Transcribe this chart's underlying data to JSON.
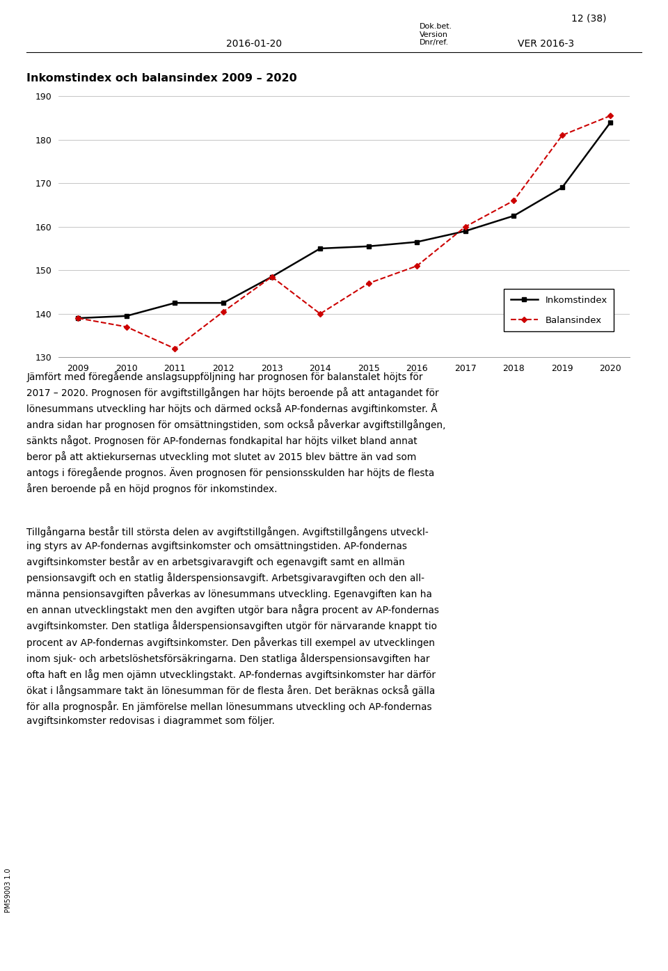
{
  "title": "Inkomstindex och balansindex 2009 – 2020",
  "years": [
    2009,
    2010,
    2011,
    2012,
    2013,
    2014,
    2015,
    2016,
    2017,
    2018,
    2019,
    2020
  ],
  "inkomstindex": [
    139.0,
    139.5,
    142.5,
    142.5,
    148.5,
    155.0,
    155.5,
    156.5,
    159.0,
    162.5,
    169.0,
    184.0
  ],
  "balansindex": [
    139.0,
    137.0,
    132.0,
    140.5,
    148.5,
    140.0,
    147.0,
    151.0,
    160.0,
    166.0,
    181.0,
    185.5
  ],
  "ylim": [
    130,
    192
  ],
  "yticks": [
    130,
    140,
    150,
    160,
    170,
    180,
    190
  ],
  "inkomstindex_color": "#000000",
  "balansindex_color": "#cc0000",
  "legend_inkomstindex": "Inkomstindex",
  "legend_balansindex": "Balansindex",
  "header_date": "2016-01-20",
  "header_doc": "Dok.bet.",
  "header_version": "Version",
  "header_dnr": "Dnr/ref.",
  "header_ver": "VER 2016-3",
  "header_page": "12 (38)",
  "sidebar_text": "PM59003 1.0",
  "para1_lines": [
    "Jämfört med föregående anslagsuppföljning har prognosen för balanstalet höjts för",
    "2017 – 2020. Prognosen för avgiftstillgången har höjts beroende på att antagandet för",
    "lönesummans utveckling har höjts och därmed också AP-fondernas avgiftinkomster. Å",
    "andra sidan har prognosen för omsättningstiden, som också påverkar avgiftstillgången,",
    "sänkts något. Prognosen för AP-fondernas fondkapital har höjts vilket bland annat",
    "beror på att aktiekursernas utveckling mot slutet av 2015 blev bättre än vad som",
    "antogs i föregående prognos. Även prognosen för pensionsskulden har höjts de flesta",
    "åren beroende på en höjd prognos för inkomstindex."
  ],
  "para2_lines": [
    "Tillgångarna består till största delen av avgiftstillgången. Avgiftstillgångens utveckl-",
    "ing styrs av AP-fondernas avgiftsinkomster och omsättningstiden. AP-fondernas",
    "avgiftsinkomster består av en arbetsgivaravgift och egenavgift samt en allmän",
    "pensionsavgift och en statlig ålderspensionsavgift. Arbetsgivaravgiften och den all-",
    "männa pensionsavgiften påverkas av lönesummans utveckling. Egenavgiften kan ha",
    "en annan utvecklingstakt men den avgiften utgör bara några procent av AP-fondernas",
    "avgiftsinkomster. Den statliga ålderspensionsavgiften utgör för närvarande knappt tio",
    "procent av AP-fondernas avgiftsinkomster. Den påverkas till exempel av utvecklingen",
    "inom sjuk- och arbetslöshetsförsäkringarna. Den statliga ålderspensionsavgiften har",
    "ofta haft en låg men ojämn utvecklingstakt. AP-fondernas avgiftsinkomster har därför",
    "ökat i långsammare takt än lönesumman för de flesta åren. Det beräknas också gälla",
    "för alla prognospår. En jämförelse mellan lönesummans utveckling och AP-fondernas",
    "avgiftsinkomster redovisas i diagrammet som följer."
  ],
  "background_color": "#ffffff",
  "grid_color": "#bbbbbb"
}
